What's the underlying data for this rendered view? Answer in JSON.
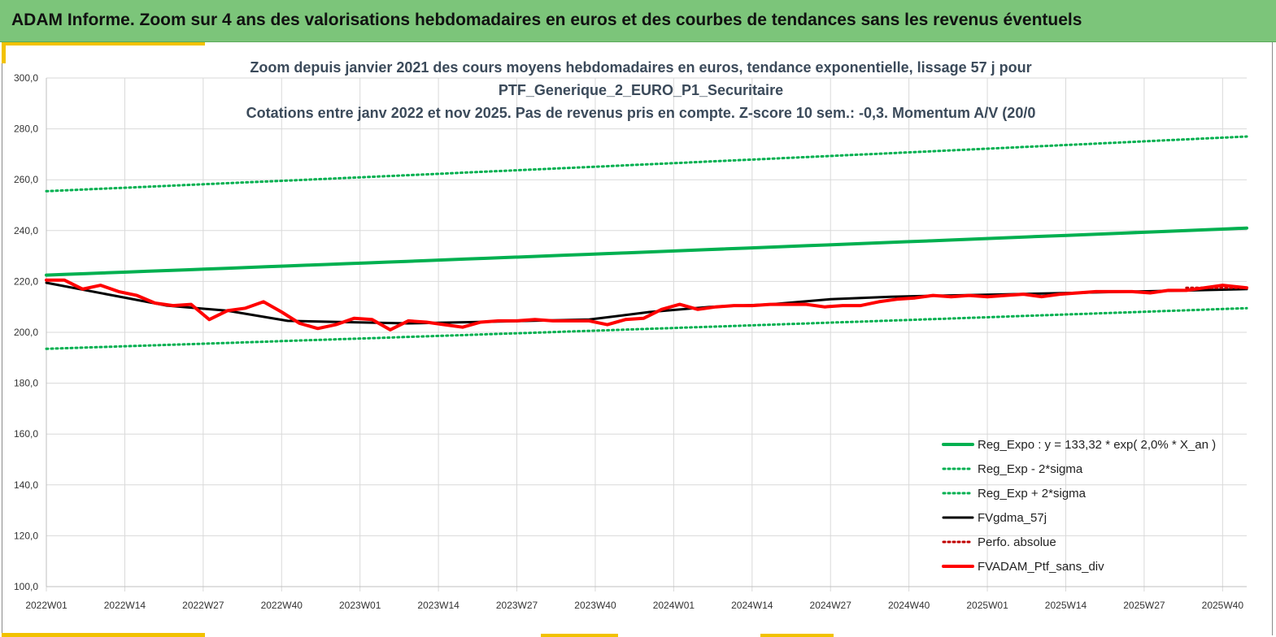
{
  "banner": {
    "title": "ADAM Informe. Zoom sur 4 ans des valorisations hebdomadaires en euros et des courbes de tendances sans les revenus éventuels"
  },
  "colors": {
    "banner_bg": "#7cc57a",
    "accent": "#f2c200",
    "reg_expo": "#00b050",
    "fvgdma": "#000000",
    "fvadam": "#ff0000",
    "grid": "#d9d9d9"
  },
  "chart_data": {
    "type": "line",
    "title_lines": [
      "Zoom depuis janvier 2021 des cours moyens hebdomadaires  en euros, tendance exponentielle, lissage 57 j pour",
      "PTF_Generique_2_EURO_P1_Securitaire",
      "Cotations  entre janv 2022 et nov 2025. Pas de revenus pris en compte. Z-score 10 sem.: -0,3. Momentum A/V (20/0"
    ],
    "x_ticks": [
      "2022W01",
      "2022W14",
      "2022W27",
      "2022W40",
      "2023W01",
      "2023W14",
      "2023W27",
      "2023W40",
      "2024W01",
      "2024W14",
      "2024W27",
      "2024W40",
      "2025W01",
      "2025W14",
      "2025W27",
      "2025W40"
    ],
    "y_ticks": [
      "100,0",
      "120,0",
      "140,0",
      "160,0",
      "180,0",
      "200,0",
      "220,0",
      "240,0",
      "260,0",
      "280,0",
      "300,0"
    ],
    "ylim": [
      100,
      300
    ],
    "n_weeks": 200,
    "grid": true,
    "legend_position": "bottom-right",
    "series": [
      {
        "name": "Reg_Expo : y = 133,32 * exp( 2,0% *  X_an )",
        "style": "solid-thick",
        "color": "#00b050",
        "x": [
          0,
          199
        ],
        "y": [
          222.5,
          241.0
        ]
      },
      {
        "name": "Reg_Exp - 2*sigma",
        "style": "dotted",
        "color": "#00b050",
        "x": [
          0,
          199
        ],
        "y": [
          193.5,
          209.5
        ]
      },
      {
        "name": "Reg_Exp + 2*sigma",
        "style": "dotted",
        "color": "#00b050",
        "x": [
          0,
          199
        ],
        "y": [
          255.5,
          277.0
        ]
      },
      {
        "name": "FVgdma_57j",
        "style": "solid",
        "color": "#000000",
        "x": [
          0,
          10,
          20,
          30,
          40,
          50,
          60,
          70,
          80,
          90,
          100,
          110,
          120,
          130,
          140,
          150,
          160,
          170,
          180,
          190,
          199
        ],
        "y": [
          219.5,
          215,
          210.5,
          208.5,
          204.5,
          204,
          203.5,
          204,
          204.5,
          205,
          208,
          210,
          211,
          213,
          214,
          214.5,
          215,
          215.5,
          216,
          216.5,
          217
        ]
      },
      {
        "name": "Perfo. absolue",
        "style": "dotted",
        "color": "#c00000",
        "x": [
          189,
          199
        ],
        "y": [
          217.5,
          217.5
        ]
      },
      {
        "name": "FVADAM_Ptf_sans_div",
        "style": "solid-thick",
        "color": "#ff0000",
        "x": [
          0,
          3,
          6,
          9,
          12,
          15,
          18,
          21,
          24,
          27,
          30,
          33,
          36,
          39,
          42,
          45,
          48,
          51,
          54,
          57,
          60,
          63,
          66,
          69,
          72,
          75,
          78,
          81,
          84,
          87,
          90,
          93,
          96,
          99,
          102,
          105,
          108,
          111,
          114,
          117,
          120,
          123,
          126,
          129,
          132,
          135,
          138,
          141,
          144,
          147,
          150,
          153,
          156,
          159,
          162,
          165,
          168,
          171,
          174,
          177,
          180,
          183,
          186,
          189,
          192,
          195,
          199
        ],
        "y": [
          220.5,
          220.5,
          217,
          218.5,
          216,
          214.5,
          211.5,
          210.5,
          211,
          205,
          208.5,
          209.5,
          212,
          208,
          203.5,
          201.5,
          203,
          205.5,
          205,
          201,
          204.5,
          204,
          203,
          202,
          204,
          204.5,
          204.5,
          205,
          204.5,
          204.5,
          204.5,
          203,
          205,
          205.5,
          209,
          211,
          209,
          210,
          210.5,
          210.5,
          211,
          211,
          211,
          210,
          210.5,
          210.5,
          212,
          213,
          213.5,
          214.5,
          214,
          214.5,
          214,
          214.5,
          215,
          214,
          215,
          215.5,
          216,
          216,
          216,
          215.5,
          216.5,
          216.5,
          217.5,
          218.5,
          217.5
        ]
      }
    ]
  }
}
